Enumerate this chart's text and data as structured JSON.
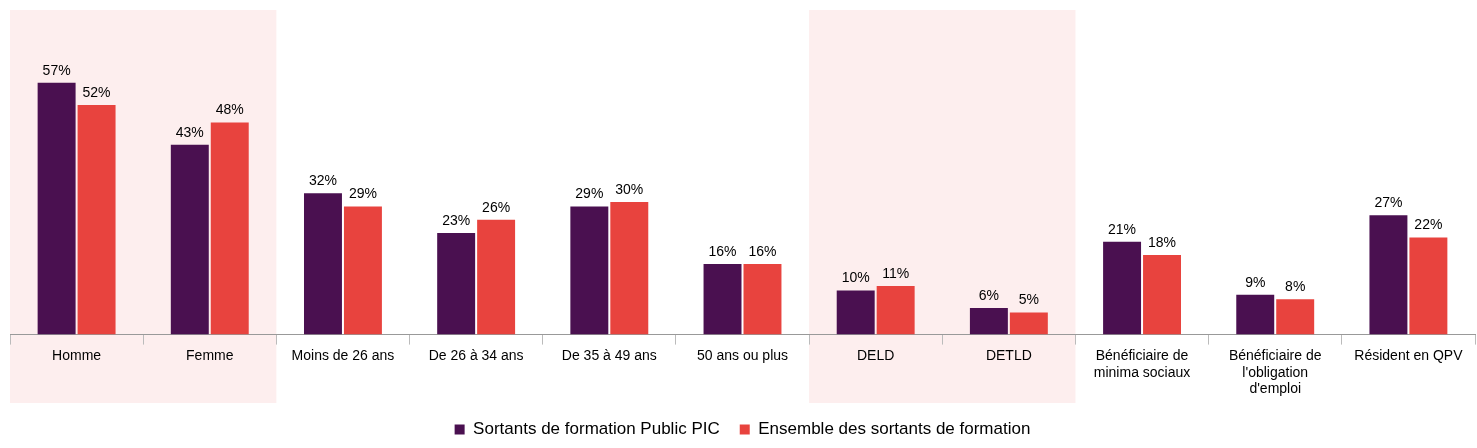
{
  "chart_data": {
    "type": "bar",
    "categories": [
      "Homme",
      "Femme",
      "Moins de 26 ans",
      "De 26 à 34 ans",
      "De 35 à 49 ans",
      "50 ans ou plus",
      "DELD",
      "DETLD",
      "Bénéficiaire de minima sociaux",
      "Bénéficiaire de l'obligation d'emploi",
      "Résident en QPV"
    ],
    "series": [
      {
        "name": "Sortants de formation Public PIC",
        "color": "#4a1050",
        "values": [
          57,
          43,
          32,
          23,
          29,
          16,
          10,
          6,
          21,
          9,
          27
        ],
        "value_labels": [
          "57%",
          "43%",
          "32%",
          "23%",
          "29%",
          "16%",
          "10%",
          "6%",
          "21%",
          "9%",
          "27%"
        ]
      },
      {
        "name": "Ensemble des sortants de formation",
        "color": "#e8433e",
        "values": [
          52,
          48,
          29,
          26,
          30,
          16,
          11,
          5,
          18,
          8,
          22
        ],
        "value_labels": [
          "52%",
          "48%",
          "29%",
          "26%",
          "30%",
          "16%",
          "11%",
          "5%",
          "18%",
          "8%",
          "22%"
        ]
      }
    ],
    "bands": [
      {
        "axis": "x",
        "from": "Homme",
        "to": "Femme",
        "color": "#fdeeee"
      },
      {
        "axis": "x",
        "from": "DELD",
        "to": "DETLD",
        "color": "#fdeeee"
      }
    ],
    "grid": false,
    "legend": "bottom"
  }
}
